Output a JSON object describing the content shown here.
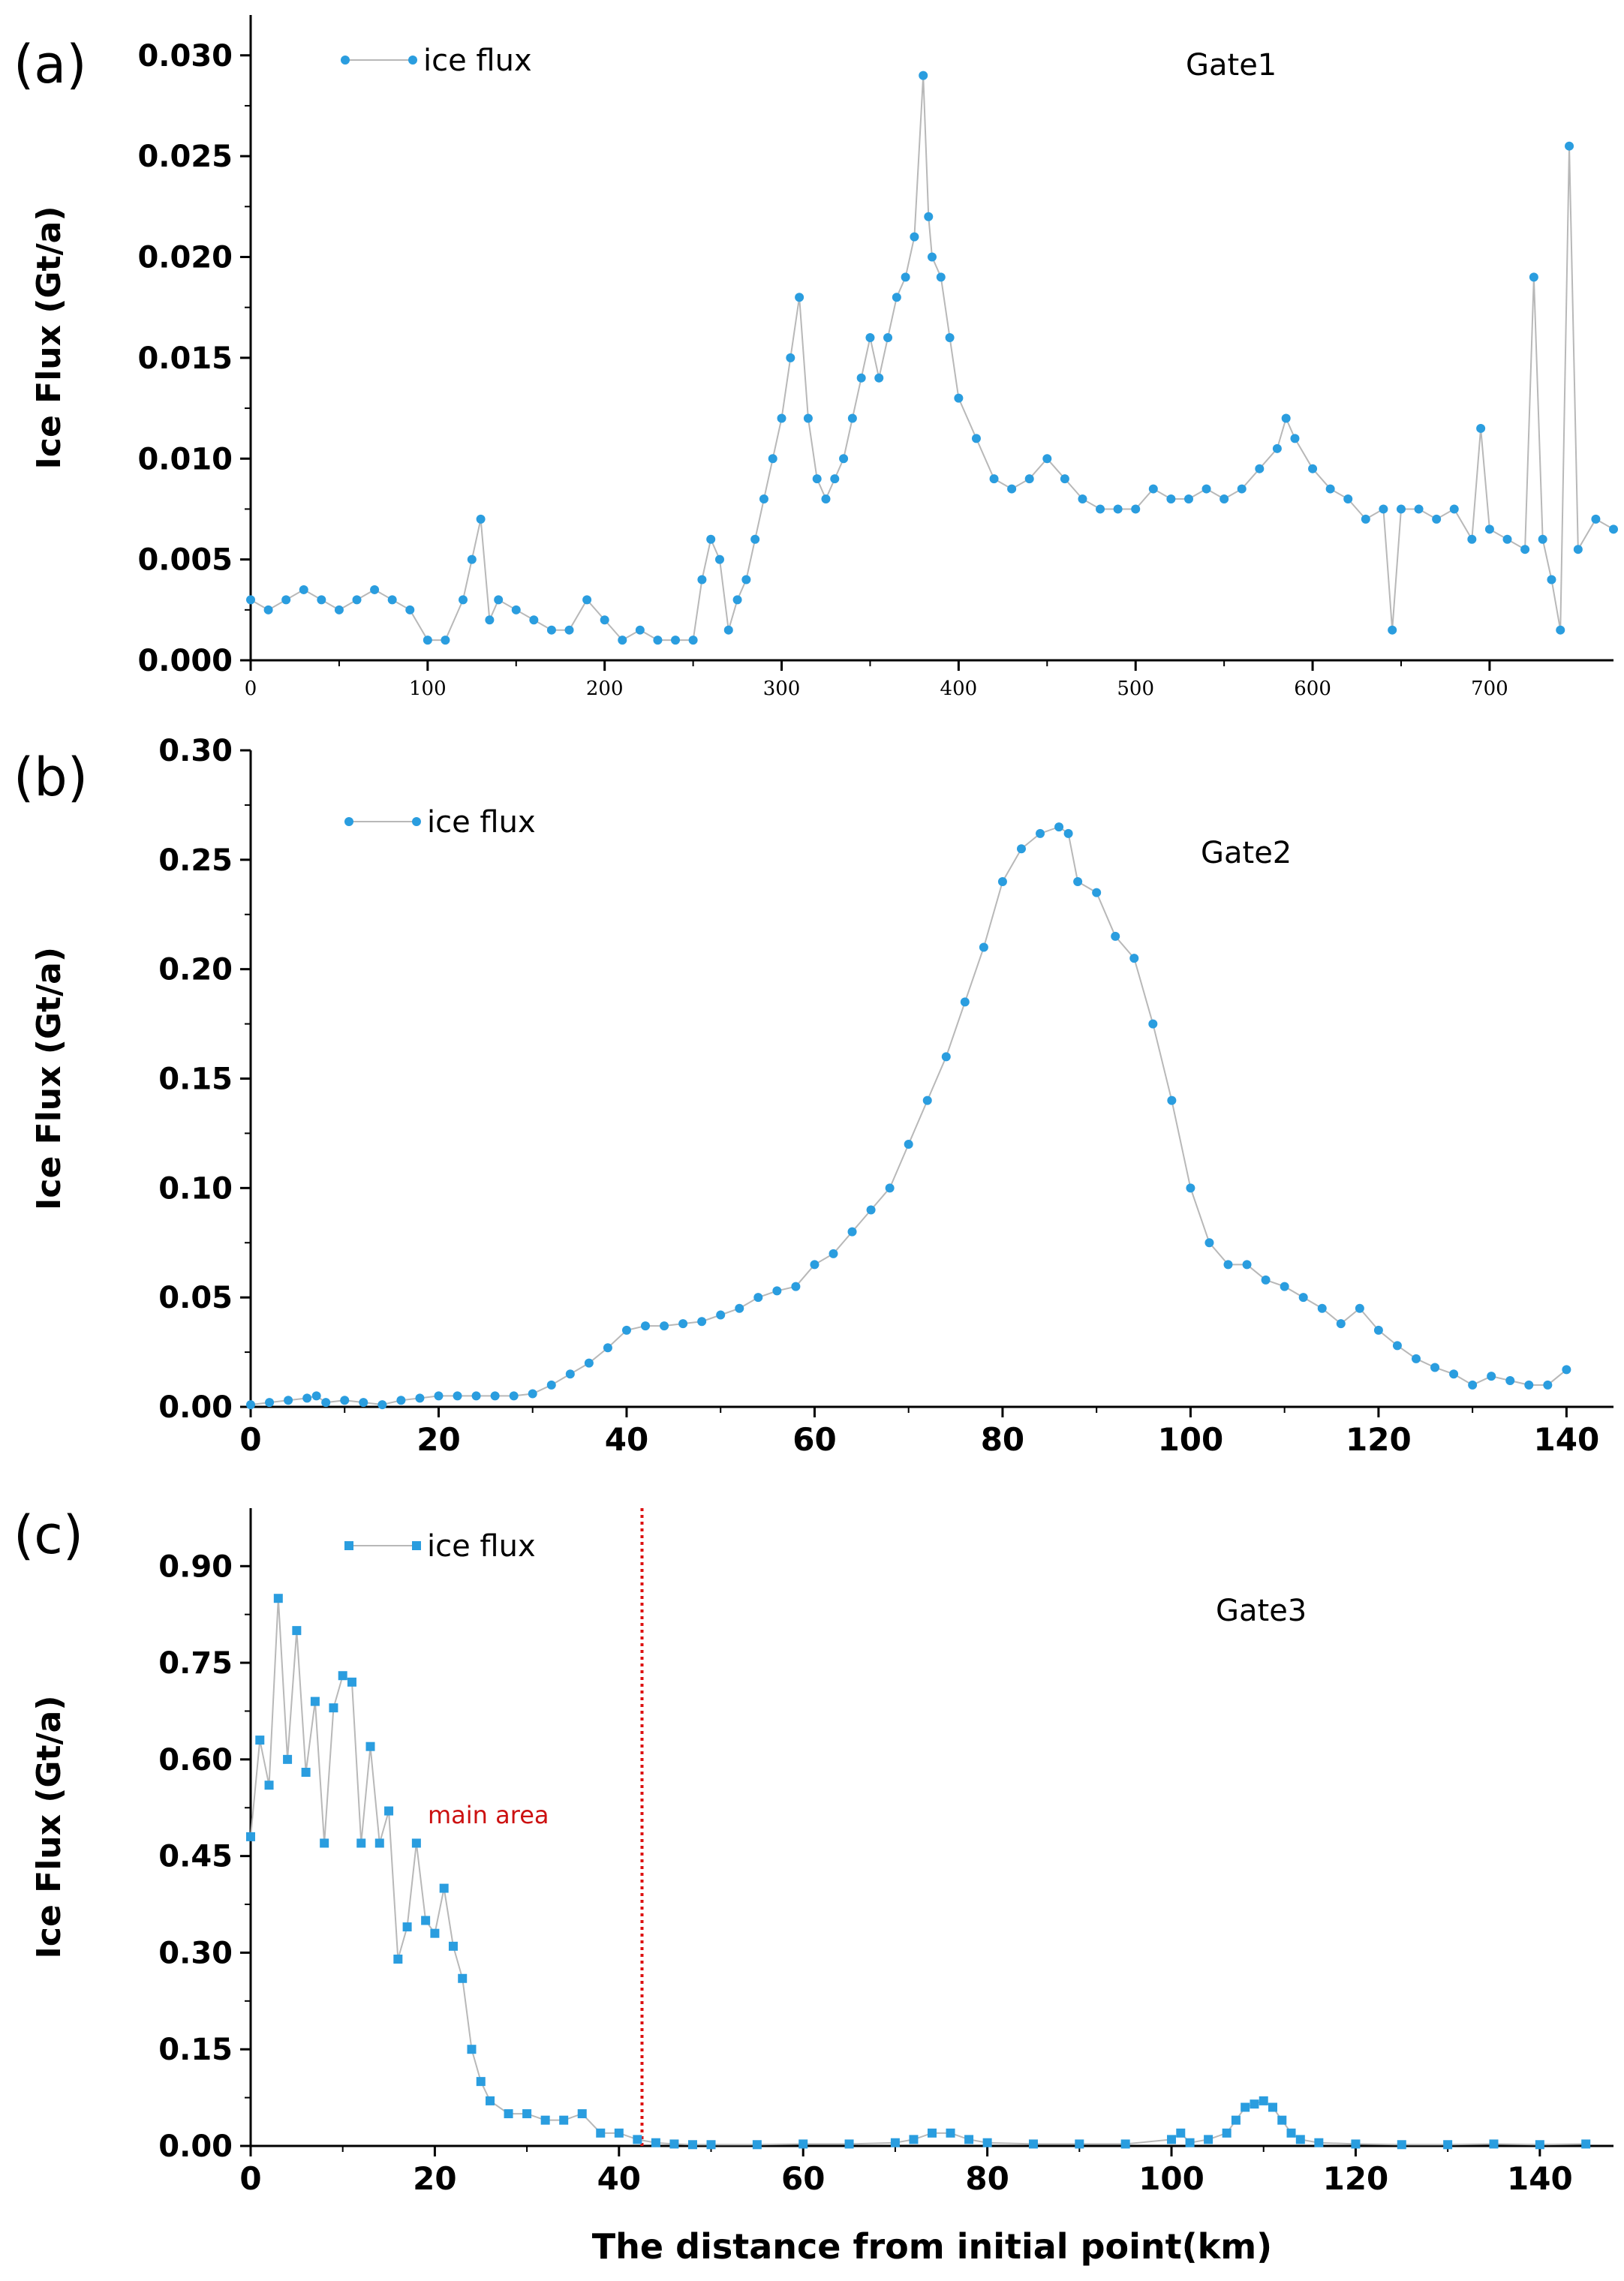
{
  "figure": {
    "xlabel": "The distance from initial point(km)"
  },
  "chart_data": [
    {
      "type": "line",
      "panel": "(a)",
      "title": "Gate1",
      "xlabel": "",
      "ylabel": "Ice Flux (Gt/a)",
      "xlim": [
        0,
        770
      ],
      "ylim": [
        0,
        0.032
      ],
      "xticks": [
        0,
        100,
        200,
        300,
        400,
        500,
        600,
        700
      ],
      "yticks": [
        0.0,
        0.005,
        0.01,
        0.015,
        0.02,
        0.025,
        0.03
      ],
      "ytick_labels": [
        "0.000",
        "0.005",
        "0.010",
        "0.015",
        "0.020",
        "0.025",
        "0.030"
      ],
      "legend": "ice flux",
      "marker": "circle",
      "color": "#2a9ddf",
      "line_color": "#b8b8b8",
      "series": [
        {
          "name": "ice flux",
          "x": [
            0,
            10,
            20,
            30,
            40,
            50,
            60,
            70,
            80,
            90,
            100,
            110,
            120,
            125,
            130,
            135,
            140,
            150,
            160,
            170,
            180,
            190,
            200,
            210,
            220,
            230,
            240,
            250,
            255,
            260,
            265,
            270,
            275,
            280,
            285,
            290,
            295,
            300,
            305,
            310,
            315,
            320,
            325,
            330,
            335,
            340,
            345,
            350,
            355,
            360,
            365,
            370,
            375,
            380,
            383,
            385,
            390,
            395,
            400,
            410,
            420,
            430,
            440,
            450,
            460,
            470,
            480,
            490,
            500,
            510,
            520,
            530,
            540,
            550,
            560,
            570,
            580,
            585,
            590,
            600,
            610,
            620,
            630,
            640,
            645,
            650,
            660,
            670,
            680,
            690,
            695,
            700,
            710,
            720,
            725,
            730,
            735,
            740,
            745,
            750,
            760,
            770
          ],
          "y": [
            0.003,
            0.0025,
            0.003,
            0.0035,
            0.003,
            0.0025,
            0.003,
            0.0035,
            0.003,
            0.0025,
            0.001,
            0.001,
            0.003,
            0.005,
            0.007,
            0.002,
            0.003,
            0.0025,
            0.002,
            0.0015,
            0.0015,
            0.003,
            0.002,
            0.001,
            0.0015,
            0.001,
            0.001,
            0.001,
            0.004,
            0.006,
            0.005,
            0.0015,
            0.003,
            0.004,
            0.006,
            0.008,
            0.01,
            0.012,
            0.015,
            0.018,
            0.012,
            0.009,
            0.008,
            0.009,
            0.01,
            0.012,
            0.014,
            0.016,
            0.014,
            0.016,
            0.018,
            0.019,
            0.021,
            0.029,
            0.022,
            0.02,
            0.019,
            0.016,
            0.013,
            0.011,
            0.009,
            0.0085,
            0.009,
            0.01,
            0.009,
            0.008,
            0.0075,
            0.0075,
            0.0075,
            0.0085,
            0.008,
            0.008,
            0.0085,
            0.008,
            0.0085,
            0.0095,
            0.0105,
            0.012,
            0.011,
            0.0095,
            0.0085,
            0.008,
            0.007,
            0.0075,
            0.0015,
            0.0075,
            0.0075,
            0.007,
            0.0075,
            0.006,
            0.0115,
            0.0065,
            0.006,
            0.0055,
            0.019,
            0.006,
            0.004,
            0.0015,
            0.0255,
            0.0055,
            0.007,
            0.0065
          ]
        }
      ]
    },
    {
      "type": "line",
      "panel": "(b)",
      "title": "Gate2",
      "xlabel": "",
      "ylabel": "Ice Flux (Gt/a)",
      "xlim": [
        0,
        145
      ],
      "ylim": [
        0,
        0.3
      ],
      "xticks": [
        0,
        20,
        40,
        60,
        80,
        100,
        120,
        140
      ],
      "yticks": [
        0.0,
        0.05,
        0.1,
        0.15,
        0.2,
        0.25,
        0.3
      ],
      "ytick_labels": [
        "0.00",
        "0.05",
        "0.10",
        "0.15",
        "0.20",
        "0.25",
        "0.30"
      ],
      "legend": "ice flux",
      "marker": "circle",
      "color": "#2a9ddf",
      "line_color": "#b8b8b8",
      "series": [
        {
          "name": "ice flux",
          "x": [
            0,
            2,
            4,
            6,
            7,
            8,
            10,
            12,
            14,
            16,
            18,
            20,
            22,
            24,
            26,
            28,
            30,
            32,
            34,
            36,
            38,
            40,
            42,
            44,
            46,
            48,
            50,
            52,
            54,
            56,
            58,
            60,
            62,
            64,
            66,
            68,
            70,
            72,
            74,
            76,
            78,
            80,
            82,
            84,
            86,
            87,
            88,
            90,
            92,
            94,
            96,
            98,
            100,
            102,
            104,
            106,
            108,
            110,
            112,
            114,
            116,
            118,
            120,
            122,
            124,
            126,
            128,
            130,
            132,
            134,
            136,
            138,
            140
          ],
          "y": [
            0.001,
            0.002,
            0.003,
            0.004,
            0.005,
            0.002,
            0.003,
            0.002,
            0.001,
            0.003,
            0.004,
            0.005,
            0.005,
            0.005,
            0.005,
            0.005,
            0.006,
            0.01,
            0.015,
            0.02,
            0.027,
            0.035,
            0.037,
            0.037,
            0.038,
            0.039,
            0.042,
            0.045,
            0.05,
            0.053,
            0.055,
            0.065,
            0.07,
            0.08,
            0.09,
            0.1,
            0.12,
            0.14,
            0.16,
            0.185,
            0.21,
            0.24,
            0.255,
            0.262,
            0.265,
            0.262,
            0.24,
            0.235,
            0.215,
            0.205,
            0.175,
            0.14,
            0.1,
            0.075,
            0.065,
            0.065,
            0.058,
            0.055,
            0.05,
            0.045,
            0.038,
            0.045,
            0.035,
            0.028,
            0.022,
            0.018,
            0.015,
            0.01,
            0.014,
            0.012,
            0.01,
            0.01,
            0.017
          ]
        }
      ]
    },
    {
      "type": "line",
      "panel": "(c)",
      "title": "Gate3",
      "xlabel": "The distance from initial point(km)",
      "ylabel": "Ice Flux (Gt/a)",
      "xlim": [
        0,
        148
      ],
      "ylim": [
        0,
        0.99
      ],
      "xticks": [
        0,
        20,
        40,
        60,
        80,
        100,
        120,
        140
      ],
      "yticks": [
        0.0,
        0.15,
        0.3,
        0.45,
        0.6,
        0.75,
        0.9
      ],
      "ytick_labels": [
        "0.00",
        "0.15",
        "0.30",
        "0.45",
        "0.60",
        "0.75",
        "0.90"
      ],
      "legend": "ice flux",
      "marker": "square",
      "color": "#2a9ddf",
      "line_color": "#b8b8b8",
      "annotation": {
        "text": "main area",
        "color": "#cc1111"
      },
      "vline": {
        "x": 42.5,
        "color": "#dd1111",
        "style": "dotted"
      },
      "series": [
        {
          "name": "ice flux",
          "x": [
            0,
            1,
            2,
            3,
            4,
            5,
            6,
            7,
            8,
            9,
            10,
            11,
            12,
            13,
            14,
            15,
            16,
            17,
            18,
            19,
            20,
            21,
            22,
            23,
            24,
            25,
            26,
            28,
            30,
            32,
            34,
            36,
            38,
            40,
            42,
            44,
            46,
            48,
            50,
            55,
            60,
            65,
            70,
            72,
            74,
            76,
            78,
            80,
            85,
            90,
            95,
            100,
            101,
            102,
            104,
            106,
            107,
            108,
            109,
            110,
            111,
            112,
            113,
            114,
            116,
            120,
            125,
            130,
            135,
            140,
            145
          ],
          "y": [
            0.48,
            0.63,
            0.56,
            0.85,
            0.6,
            0.8,
            0.58,
            0.69,
            0.47,
            0.68,
            0.73,
            0.72,
            0.47,
            0.62,
            0.47,
            0.52,
            0.29,
            0.34,
            0.47,
            0.35,
            0.33,
            0.4,
            0.31,
            0.26,
            0.15,
            0.1,
            0.07,
            0.05,
            0.05,
            0.04,
            0.04,
            0.05,
            0.02,
            0.02,
            0.01,
            0.005,
            0.003,
            0.002,
            0.002,
            0.002,
            0.003,
            0.003,
            0.005,
            0.01,
            0.02,
            0.02,
            0.01,
            0.005,
            0.003,
            0.003,
            0.003,
            0.01,
            0.02,
            0.005,
            0.01,
            0.02,
            0.04,
            0.06,
            0.065,
            0.07,
            0.06,
            0.04,
            0.02,
            0.01,
            0.005,
            0.003,
            0.002,
            0.002,
            0.003,
            0.002,
            0.003
          ]
        }
      ]
    }
  ]
}
